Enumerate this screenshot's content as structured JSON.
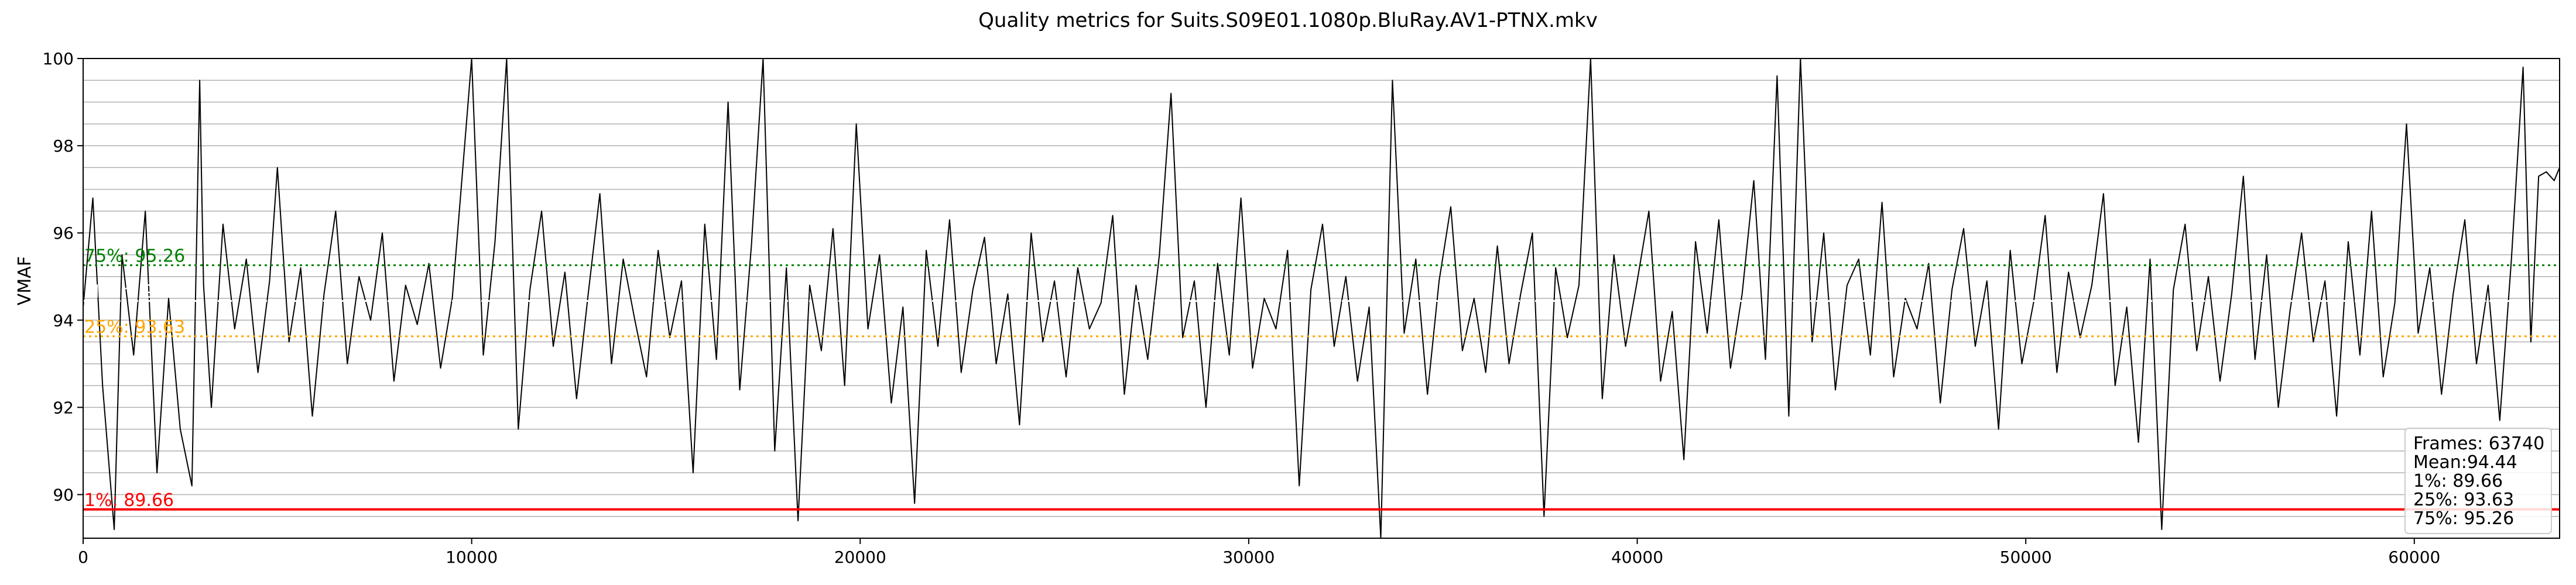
{
  "chart_data": {
    "type": "line",
    "title": "Quality metrics for Suits.S09E01.1080p.BluRay.AV1-PTNX.mkv",
    "xlabel": "",
    "ylabel": "VMAF",
    "xlim": [
      0,
      63740
    ],
    "ylim": [
      89,
      100
    ],
    "x_ticks": [
      0,
      10000,
      20000,
      30000,
      40000,
      50000,
      60000
    ],
    "y_ticks": [
      90,
      92,
      94,
      96,
      98,
      100
    ],
    "grid": true,
    "series": [
      {
        "name": "",
        "color": "#000000",
        "points": [
          [
            0,
            94.3
          ],
          [
            250,
            96.8
          ],
          [
            500,
            92.5
          ],
          [
            800,
            89.2
          ],
          [
            1000,
            95.5
          ],
          [
            1300,
            93.2
          ],
          [
            1600,
            96.5
          ],
          [
            1900,
            90.5
          ],
          [
            2200,
            94.5
          ],
          [
            2500,
            91.5
          ],
          [
            2800,
            90.2
          ],
          [
            3000,
            99.5
          ],
          [
            3100,
            94.8
          ],
          [
            3300,
            92.0
          ],
          [
            3600,
            96.2
          ],
          [
            3900,
            93.8
          ],
          [
            4200,
            95.4
          ],
          [
            4500,
            92.8
          ],
          [
            4800,
            94.9
          ],
          [
            5000,
            97.5
          ],
          [
            5300,
            93.5
          ],
          [
            5600,
            95.2
          ],
          [
            5900,
            91.8
          ],
          [
            6200,
            94.6
          ],
          [
            6500,
            96.5
          ],
          [
            6800,
            93.0
          ],
          [
            7100,
            95.0
          ],
          [
            7400,
            94.0
          ],
          [
            7700,
            96.0
          ],
          [
            8000,
            92.6
          ],
          [
            8300,
            94.8
          ],
          [
            8600,
            93.9
          ],
          [
            8900,
            95.3
          ],
          [
            9200,
            92.9
          ],
          [
            9500,
            94.5
          ],
          [
            9800,
            97.8
          ],
          [
            10000,
            100
          ],
          [
            10300,
            93.2
          ],
          [
            10600,
            95.8
          ],
          [
            10900,
            100
          ],
          [
            11200,
            91.5
          ],
          [
            11500,
            94.7
          ],
          [
            11800,
            96.5
          ],
          [
            12100,
            93.4
          ],
          [
            12400,
            95.1
          ],
          [
            12700,
            92.2
          ],
          [
            13000,
            94.6
          ],
          [
            13300,
            96.9
          ],
          [
            13600,
            93.0
          ],
          [
            13900,
            95.4
          ],
          [
            14200,
            94.0
          ],
          [
            14500,
            92.7
          ],
          [
            14800,
            95.6
          ],
          [
            15100,
            93.6
          ],
          [
            15400,
            94.9
          ],
          [
            15700,
            90.5
          ],
          [
            16000,
            96.2
          ],
          [
            16300,
            93.1
          ],
          [
            16600,
            99.0
          ],
          [
            16900,
            92.4
          ],
          [
            17200,
            95.7
          ],
          [
            17500,
            100
          ],
          [
            17800,
            91.0
          ],
          [
            18100,
            95.2
          ],
          [
            18400,
            89.4
          ],
          [
            18700,
            94.8
          ],
          [
            19000,
            93.3
          ],
          [
            19300,
            96.1
          ],
          [
            19600,
            92.5
          ],
          [
            19900,
            98.5
          ],
          [
            20200,
            93.8
          ],
          [
            20500,
            95.5
          ],
          [
            20800,
            92.1
          ],
          [
            21100,
            94.3
          ],
          [
            21400,
            89.8
          ],
          [
            21700,
            95.6
          ],
          [
            22000,
            93.4
          ],
          [
            22300,
            96.3
          ],
          [
            22600,
            92.8
          ],
          [
            22900,
            94.7
          ],
          [
            23200,
            95.9
          ],
          [
            23500,
            93.0
          ],
          [
            23800,
            94.6
          ],
          [
            24100,
            91.6
          ],
          [
            24400,
            96.0
          ],
          [
            24700,
            93.5
          ],
          [
            25000,
            94.9
          ],
          [
            25300,
            92.7
          ],
          [
            25600,
            95.2
          ],
          [
            25900,
            93.8
          ],
          [
            26200,
            94.4
          ],
          [
            26500,
            96.4
          ],
          [
            26800,
            92.3
          ],
          [
            27100,
            94.8
          ],
          [
            27400,
            93.1
          ],
          [
            27700,
            95.5
          ],
          [
            28000,
            99.2
          ],
          [
            28300,
            93.6
          ],
          [
            28600,
            94.9
          ],
          [
            28900,
            92.0
          ],
          [
            29200,
            95.3
          ],
          [
            29500,
            93.2
          ],
          [
            29800,
            96.8
          ],
          [
            30100,
            92.9
          ],
          [
            30400,
            94.5
          ],
          [
            30700,
            93.8
          ],
          [
            31000,
            95.6
          ],
          [
            31300,
            90.2
          ],
          [
            31600,
            94.7
          ],
          [
            31900,
            96.2
          ],
          [
            32200,
            93.4
          ],
          [
            32500,
            95.0
          ],
          [
            32800,
            92.6
          ],
          [
            33100,
            94.3
          ],
          [
            33400,
            89.0
          ],
          [
            33700,
            99.5
          ],
          [
            34000,
            93.7
          ],
          [
            34300,
            95.4
          ],
          [
            34600,
            92.3
          ],
          [
            34900,
            94.9
          ],
          [
            35200,
            96.6
          ],
          [
            35500,
            93.3
          ],
          [
            35800,
            94.5
          ],
          [
            36100,
            92.8
          ],
          [
            36400,
            95.7
          ],
          [
            36700,
            93.0
          ],
          [
            37000,
            94.6
          ],
          [
            37300,
            96.0
          ],
          [
            37600,
            89.5
          ],
          [
            37900,
            95.2
          ],
          [
            38200,
            93.6
          ],
          [
            38500,
            94.8
          ],
          [
            38800,
            100
          ],
          [
            39100,
            92.2
          ],
          [
            39400,
            95.5
          ],
          [
            39700,
            93.4
          ],
          [
            40000,
            94.9
          ],
          [
            40300,
            96.5
          ],
          [
            40600,
            92.6
          ],
          [
            40900,
            94.2
          ],
          [
            41200,
            90.8
          ],
          [
            41500,
            95.8
          ],
          [
            41800,
            93.7
          ],
          [
            42100,
            96.3
          ],
          [
            42400,
            92.9
          ],
          [
            42700,
            94.6
          ],
          [
            43000,
            97.2
          ],
          [
            43300,
            93.1
          ],
          [
            43600,
            99.6
          ],
          [
            43900,
            91.8
          ],
          [
            44200,
            100
          ],
          [
            44500,
            93.5
          ],
          [
            44800,
            96.0
          ],
          [
            45100,
            92.4
          ],
          [
            45400,
            94.8
          ],
          [
            45700,
            95.4
          ],
          [
            46000,
            93.2
          ],
          [
            46300,
            96.7
          ],
          [
            46600,
            92.7
          ],
          [
            46900,
            94.5
          ],
          [
            47200,
            93.8
          ],
          [
            47500,
            95.3
          ],
          [
            47800,
            92.1
          ],
          [
            48100,
            94.7
          ],
          [
            48400,
            96.1
          ],
          [
            48700,
            93.4
          ],
          [
            49000,
            94.9
          ],
          [
            49300,
            91.5
          ],
          [
            49600,
            95.6
          ],
          [
            49900,
            93.0
          ],
          [
            50200,
            94.4
          ],
          [
            50500,
            96.4
          ],
          [
            50800,
            92.8
          ],
          [
            51100,
            95.1
          ],
          [
            51400,
            93.6
          ],
          [
            51700,
            94.8
          ],
          [
            52000,
            96.9
          ],
          [
            52300,
            92.5
          ],
          [
            52600,
            94.3
          ],
          [
            52900,
            91.2
          ],
          [
            53200,
            95.4
          ],
          [
            53500,
            89.2
          ],
          [
            53800,
            94.7
          ],
          [
            54100,
            96.2
          ],
          [
            54400,
            93.3
          ],
          [
            54700,
            95.0
          ],
          [
            55000,
            92.6
          ],
          [
            55300,
            94.6
          ],
          [
            55600,
            97.3
          ],
          [
            55900,
            93.1
          ],
          [
            56200,
            95.5
          ],
          [
            56500,
            92.0
          ],
          [
            56800,
            94.2
          ],
          [
            57100,
            96.0
          ],
          [
            57400,
            93.5
          ],
          [
            57700,
            94.9
          ],
          [
            58000,
            91.8
          ],
          [
            58300,
            95.8
          ],
          [
            58600,
            93.2
          ],
          [
            58900,
            96.5
          ],
          [
            59200,
            92.7
          ],
          [
            59500,
            94.4
          ],
          [
            59800,
            98.5
          ],
          [
            60100,
            93.7
          ],
          [
            60400,
            95.2
          ],
          [
            60700,
            92.3
          ],
          [
            61000,
            94.6
          ],
          [
            61300,
            96.3
          ],
          [
            61600,
            93.0
          ],
          [
            61900,
            94.8
          ],
          [
            62200,
            91.7
          ],
          [
            62500,
            95.4
          ],
          [
            62800,
            99.8
          ],
          [
            63000,
            93.5
          ],
          [
            63200,
            97.3
          ],
          [
            63400,
            97.4
          ],
          [
            63600,
            97.2
          ],
          [
            63740,
            97.5
          ]
        ]
      }
    ],
    "reference_lines": [
      {
        "label": "1%: 89.66",
        "value": 89.66,
        "color": "#ff0000",
        "style": "solid"
      },
      {
        "label": "25%: 93.63",
        "value": 93.63,
        "color": "#ffa500",
        "style": "dotted"
      },
      {
        "label": "Mean: 94.44",
        "value": 94.44,
        "color": "#ffffff",
        "style": "dotted"
      },
      {
        "label": "75%: 95.26",
        "value": 95.26,
        "color": "#008000",
        "style": "dotted"
      }
    ],
    "stats_box": {
      "position": "bottom-right",
      "lines": [
        "Frames: 63740",
        "Mean:94.44",
        "1%: 89.66",
        "25%: 93.63",
        "75%: 95.26"
      ]
    }
  }
}
